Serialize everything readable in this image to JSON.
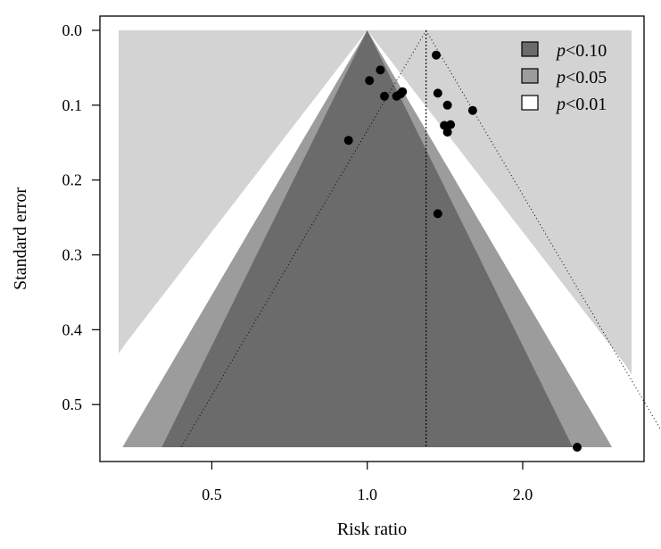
{
  "chart_data": {
    "type": "scatter",
    "subtype": "contour-enhanced funnel plot",
    "xlabel": "Risk ratio",
    "ylabel": "Standard error",
    "x_scale": "log",
    "x_ticks": [
      {
        "value": 0.5,
        "label": "0.5"
      },
      {
        "value": 1.0,
        "label": "1.0"
      },
      {
        "value": 2.0,
        "label": "2.0"
      }
    ],
    "y_ticks": [
      {
        "value": 0.0,
        "label": "0.0"
      },
      {
        "value": 0.1,
        "label": "0.1"
      },
      {
        "value": 0.2,
        "label": "0.2"
      },
      {
        "value": 0.3,
        "label": "0.3"
      },
      {
        "value": 0.4,
        "label": "0.4"
      },
      {
        "value": 0.5,
        "label": "0.5"
      }
    ],
    "xlim": [
      0.33,
      3.25
    ],
    "ylim": [
      0.0,
      0.557
    ],
    "y_reversed": true,
    "grid": false,
    "pooled_estimate": 1.3,
    "funnel_apex": 1.0,
    "contours": [
      {
        "label": "p",
        "op": "<",
        "level": "0.10",
        "z": 1.645,
        "color": "#6b6b6b"
      },
      {
        "label": "p",
        "op": "<",
        "level": "0.05",
        "z": 1.96,
        "color": "#9c9c9c"
      },
      {
        "label": "p",
        "op": "<",
        "level": "0.01",
        "z": 2.576,
        "color": "#ffffff"
      }
    ],
    "outside_color": "#d3d3d3",
    "legend_position": "top-right",
    "points": [
      {
        "x": 1.36,
        "y": 0.033
      },
      {
        "x": 1.06,
        "y": 0.053
      },
      {
        "x": 1.01,
        "y": 0.067
      },
      {
        "x": 1.17,
        "y": 0.082
      },
      {
        "x": 1.16,
        "y": 0.085
      },
      {
        "x": 1.37,
        "y": 0.084
      },
      {
        "x": 1.08,
        "y": 0.088
      },
      {
        "x": 1.14,
        "y": 0.088
      },
      {
        "x": 1.43,
        "y": 0.1
      },
      {
        "x": 1.6,
        "y": 0.107
      },
      {
        "x": 1.45,
        "y": 0.126
      },
      {
        "x": 1.41,
        "y": 0.127
      },
      {
        "x": 1.43,
        "y": 0.136
      },
      {
        "x": 0.92,
        "y": 0.147
      },
      {
        "x": 1.37,
        "y": 0.245
      },
      {
        "x": 2.55,
        "y": 0.557
      }
    ]
  }
}
